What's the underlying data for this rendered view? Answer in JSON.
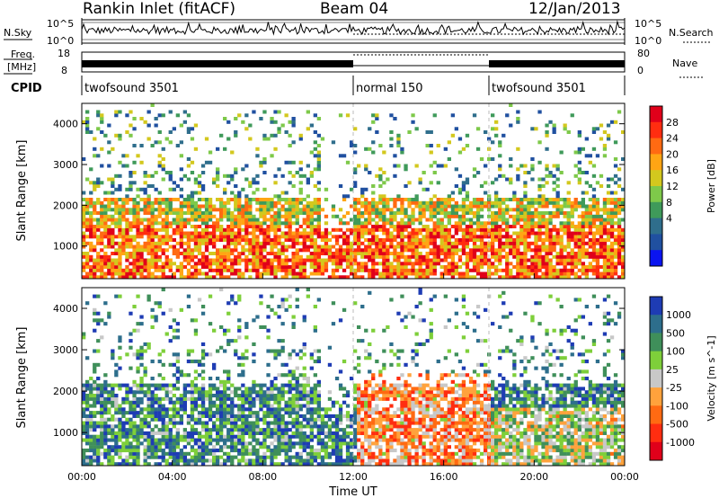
{
  "header": {
    "station": "Rankin Inlet (fitACF)",
    "beam": "Beam 04",
    "date": "12/Jan/2013"
  },
  "noise_panel": {
    "left_label": "N.Sky",
    "right_label": "N.Search",
    "left_ticks": [
      "10^5",
      "10^0"
    ],
    "right_ticks": [
      "10^5",
      "10^0"
    ]
  },
  "freq_panel": {
    "left_label": [
      "Freq.",
      "[MHz]"
    ],
    "left_ticks": [
      "18",
      "8"
    ],
    "right_label": "Nave",
    "right_ticks": [
      "80",
      "0"
    ]
  },
  "cpid": {
    "label": "CPID",
    "segments": [
      {
        "start": 0,
        "end": 12,
        "name": "twofsound 3501"
      },
      {
        "start": 12,
        "end": 18,
        "name": "normal 150"
      },
      {
        "start": 18,
        "end": 24,
        "name": "twofsound 3501"
      }
    ]
  },
  "chart_data": [
    {
      "type": "heatmap",
      "name": "power",
      "ylabel": "Slant Range [km]",
      "x_range_hours": [
        0,
        24
      ],
      "ylim": [
        200,
        4500
      ],
      "yticks": [
        "1000",
        "2000",
        "3000",
        "4000"
      ],
      "colorbar": {
        "label": "Power [dB]",
        "ticks": [
          "28",
          "24",
          "20",
          "16",
          "12",
          "8",
          "4"
        ],
        "colors": [
          "#e0001a",
          "#ff2d10",
          "#ff6a12",
          "#ffa514",
          "#d3c81e",
          "#7ec94a",
          "#3f9a5a",
          "#2f6e8c",
          "#2050a0",
          "#0a14f0"
        ]
      }
    },
    {
      "type": "heatmap",
      "name": "velocity",
      "ylabel": "Slant Range [km]",
      "xlabel": "Time UT",
      "x_range_hours": [
        0,
        24
      ],
      "xticks": [
        "00:00",
        "04:00",
        "08:00",
        "12:00",
        "16:00",
        "20:00",
        "00:00"
      ],
      "ylim": [
        200,
        4500
      ],
      "yticks": [
        "1000",
        "2000",
        "3000",
        "4000"
      ],
      "colorbar": {
        "label": "Velocity [m s^-1]",
        "ticks": [
          "1000",
          "500",
          "100",
          "25",
          "-25",
          "-100",
          "-500",
          "-1000"
        ],
        "colors": [
          "#1e3cb4",
          "#2d6e8c",
          "#3f8f5a",
          "#7ecf3a",
          "#c8c8c8",
          "#ffa23c",
          "#ff6a12",
          "#ff2d10",
          "#e0001a"
        ]
      }
    }
  ]
}
